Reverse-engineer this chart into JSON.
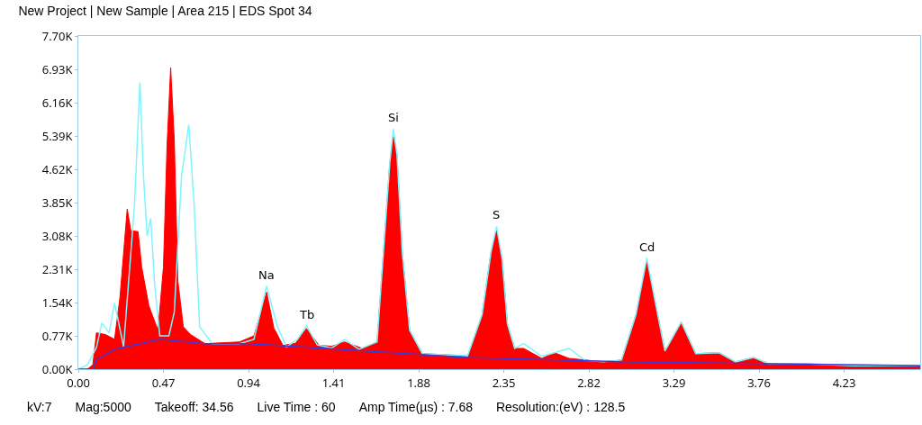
{
  "chart_data": {
    "type": "area",
    "title": "New Project | New Sample | Area 215 | EDS Spot 34",
    "annotations": [
      {
        "text": "Na",
        "x": 1.04,
        "y": 1920
      },
      {
        "text": "Tb",
        "x": 1.26,
        "y": 1000
      },
      {
        "text": "Si",
        "x": 1.74,
        "y": 5550
      },
      {
        "text": "S",
        "x": 2.31,
        "y": 3300
      },
      {
        "text": "Cd",
        "x": 3.14,
        "y": 2570
      },
      "kV:7",
      "Mag:5000",
      "Takeoff: 34.56",
      "Live Time : 60",
      "Amp Time(µs) : 7.68",
      "Resolution:(eV) : 128.5"
    ],
    "series": [
      {
        "color": "#ff0000",
        "x": [
          0,
          0.05,
          0.08,
          0.1,
          0.15,
          0.2,
          0.23,
          0.27,
          0.29,
          0.33,
          0.35,
          0.39,
          0.44,
          0.47,
          0.49,
          0.51,
          0.53,
          0.55,
          0.58,
          0.62,
          0.7,
          0.89,
          0.97,
          1.04,
          1.08,
          1.13,
          1.2,
          1.26,
          1.33,
          1.4,
          1.47,
          1.57,
          1.65,
          1.69,
          1.72,
          1.74,
          1.76,
          1.79,
          1.83,
          1.9,
          2.15,
          2.23,
          2.28,
          2.31,
          2.34,
          2.37,
          2.41,
          2.46,
          2.56,
          2.63,
          2.71,
          2.9,
          3.0,
          3.08,
          3.14,
          3.2,
          3.24,
          3.33,
          3.41,
          3.54,
          3.63,
          3.73,
          3.81,
          3.98,
          4.28,
          4.65
        ],
        "values": [
          0,
          0,
          100,
          840,
          800,
          690,
          1670,
          3700,
          3200,
          3180,
          2360,
          1460,
          900,
          2360,
          5170,
          6970,
          5300,
          2030,
          980,
          800,
          590,
          630,
          770,
          1780,
          950,
          550,
          600,
          940,
          550,
          530,
          630,
          480,
          630,
          2990,
          4750,
          5380,
          4960,
          2660,
          900,
          360,
          310,
          1260,
          2720,
          3200,
          2570,
          1050,
          480,
          480,
          250,
          380,
          250,
          170,
          210,
          1260,
          2510,
          1260,
          420,
          1090,
          360,
          380,
          170,
          270,
          130,
          130,
          80,
          80
        ]
      },
      {
        "type": "line",
        "color": "#80f4ff",
        "x": [
          0,
          0.05,
          0.1,
          0.13,
          0.17,
          0.2,
          0.25,
          0.31,
          0.34,
          0.36,
          0.38,
          0.4,
          0.42,
          0.45,
          0.5,
          0.53,
          0.57,
          0.61,
          0.64,
          0.67,
          0.74,
          0.89,
          0.97,
          1.04,
          1.1,
          1.15,
          1.21,
          1.26,
          1.32,
          1.4,
          1.47,
          1.55,
          1.65,
          1.69,
          1.72,
          1.74,
          1.76,
          1.79,
          1.83,
          1.9,
          2.15,
          2.23,
          2.28,
          2.31,
          2.34,
          2.37,
          2.41,
          2.46,
          2.56,
          2.63,
          2.71,
          2.8,
          2.9,
          3.0,
          3.08,
          3.14,
          3.2,
          3.24,
          3.33,
          3.41,
          3.54,
          3.63,
          3.73,
          3.81,
          3.98,
          4.28,
          4.65
        ],
        "values": [
          0,
          100,
          500,
          1070,
          840,
          1530,
          520,
          3770,
          6630,
          4460,
          3080,
          3490,
          2030,
          770,
          770,
          1320,
          4460,
          5650,
          3770,
          980,
          590,
          590,
          690,
          1920,
          980,
          520,
          690,
          1000,
          560,
          490,
          690,
          460,
          630,
          2990,
          4750,
          5550,
          4960,
          2660,
          900,
          360,
          310,
          1260,
          2720,
          3300,
          2570,
          1050,
          480,
          590,
          300,
          380,
          480,
          200,
          170,
          210,
          1260,
          2570,
          1260,
          420,
          1090,
          360,
          380,
          170,
          270,
          130,
          130,
          80,
          80
        ]
      },
      {
        "type": "line",
        "color": "#3a3adf",
        "x": [
          0,
          0.08,
          0.1,
          0.2,
          0.45,
          0.7,
          0.95,
          1.45,
          2.15,
          3.0,
          4.65
        ],
        "values": [
          0,
          0,
          210,
          460,
          690,
          590,
          590,
          460,
          270,
          170,
          80
        ]
      }
    ],
    "xlim": [
      0,
      4.65
    ],
    "xticks": [
      {
        "value": 0,
        "label": "0.00"
      },
      0.47,
      0.94,
      1.41,
      1.88,
      2.35,
      2.82,
      3.29,
      3.76,
      4.23
    ],
    "ylim": [
      0,
      7700
    ],
    "yticks": [
      {
        "value": 0,
        "label": "0.00K"
      },
      {
        "value": 770,
        "label": "0.77K"
      },
      {
        "value": 1540,
        "label": "1.54K"
      },
      {
        "value": 2310,
        "label": "2.31K"
      },
      {
        "value": 3080,
        "label": "3.08K"
      },
      {
        "value": 3850,
        "label": "3.85K"
      },
      {
        "value": 4620,
        "label": "4.62K"
      },
      {
        "value": 5390,
        "label": "5.39K"
      },
      {
        "value": 6160,
        "label": "6.16K"
      },
      {
        "value": 6930,
        "label": "6.93K"
      },
      {
        "value": 7700,
        "label": "7.70K"
      }
    ],
    "grid": false,
    "marker": "none",
    "line_style": "solid"
  }
}
